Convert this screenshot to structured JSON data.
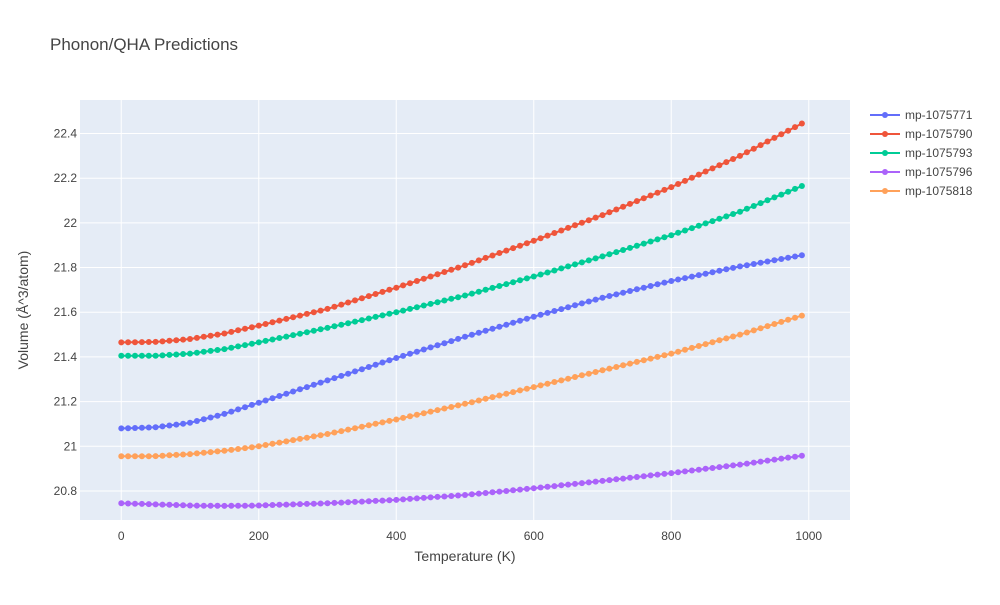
{
  "chart_data": {
    "type": "line",
    "title": "Phonon/QHA Predictions",
    "xlabel": "Temperature (K)",
    "ylabel": "Volume (Å^3/atom)",
    "xlim": [
      -60,
      1060
    ],
    "ylim": [
      20.67,
      22.55
    ],
    "xticks": [
      0,
      200,
      400,
      600,
      800,
      1000
    ],
    "xtick_labels": [
      "0",
      "200",
      "400",
      "600",
      "800",
      "1000"
    ],
    "yticks": [
      20.8,
      21.0,
      21.2,
      21.4,
      21.6,
      21.8,
      22.0,
      22.2,
      22.4
    ],
    "ytick_labels": [
      "20.8",
      "21",
      "21.2",
      "21.4",
      "21.6",
      "21.8",
      "22",
      "22.2",
      "22.4"
    ],
    "grid": true,
    "legend_position": "top-right",
    "x_range": [
      0,
      990
    ],
    "x_step": 10,
    "series": [
      {
        "name": "mp-1075771",
        "color": "#636efa",
        "anchors": [
          [
            0,
            21.08
          ],
          [
            50,
            21.085
          ],
          [
            100,
            21.105
          ],
          [
            150,
            21.145
          ],
          [
            200,
            21.195
          ],
          [
            250,
            21.245
          ],
          [
            300,
            21.295
          ],
          [
            400,
            21.395
          ],
          [
            500,
            21.49
          ],
          [
            600,
            21.58
          ],
          [
            700,
            21.665
          ],
          [
            800,
            21.74
          ],
          [
            900,
            21.805
          ],
          [
            990,
            21.855
          ]
        ]
      },
      {
        "name": "mp-1075790",
        "color": "#ef553b",
        "anchors": [
          [
            0,
            21.465
          ],
          [
            50,
            21.467
          ],
          [
            100,
            21.48
          ],
          [
            150,
            21.505
          ],
          [
            200,
            21.54
          ],
          [
            300,
            21.615
          ],
          [
            400,
            21.71
          ],
          [
            500,
            21.81
          ],
          [
            600,
            21.92
          ],
          [
            700,
            22.035
          ],
          [
            800,
            22.16
          ],
          [
            900,
            22.3
          ],
          [
            990,
            22.445
          ]
        ]
      },
      {
        "name": "mp-1075793",
        "color": "#00cc96",
        "anchors": [
          [
            0,
            21.405
          ],
          [
            50,
            21.405
          ],
          [
            100,
            21.415
          ],
          [
            150,
            21.435
          ],
          [
            200,
            21.465
          ],
          [
            300,
            21.53
          ],
          [
            400,
            21.6
          ],
          [
            500,
            21.675
          ],
          [
            600,
            21.76
          ],
          [
            700,
            21.85
          ],
          [
            800,
            21.945
          ],
          [
            900,
            22.05
          ],
          [
            990,
            22.165
          ]
        ]
      },
      {
        "name": "mp-1075796",
        "color": "#ab63fa",
        "anchors": [
          [
            0,
            20.745
          ],
          [
            50,
            20.74
          ],
          [
            100,
            20.735
          ],
          [
            150,
            20.733
          ],
          [
            200,
            20.735
          ],
          [
            300,
            20.745
          ],
          [
            400,
            20.76
          ],
          [
            500,
            20.782
          ],
          [
            600,
            20.812
          ],
          [
            700,
            20.845
          ],
          [
            800,
            20.88
          ],
          [
            900,
            20.918
          ],
          [
            990,
            20.958
          ]
        ]
      },
      {
        "name": "mp-1075818",
        "color": "#ffa15a",
        "anchors": [
          [
            0,
            20.955
          ],
          [
            50,
            20.956
          ],
          [
            100,
            20.965
          ],
          [
            150,
            20.98
          ],
          [
            200,
            21.0
          ],
          [
            300,
            21.055
          ],
          [
            400,
            21.12
          ],
          [
            500,
            21.19
          ],
          [
            600,
            21.265
          ],
          [
            700,
            21.34
          ],
          [
            800,
            21.415
          ],
          [
            900,
            21.5
          ],
          [
            990,
            21.585
          ]
        ]
      }
    ]
  }
}
